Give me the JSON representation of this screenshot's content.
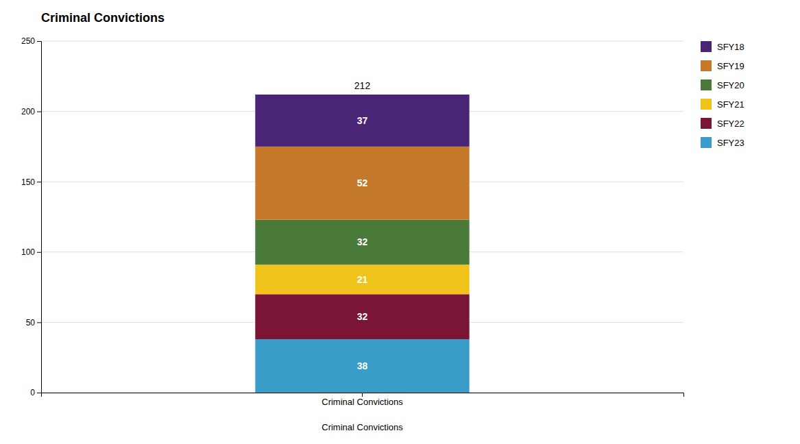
{
  "chart_data": {
    "type": "bar",
    "stacked": true,
    "title": "Criminal Convictions",
    "xlabel": "Criminal Convictions",
    "categories": [
      "Criminal Convictions"
    ],
    "series": [
      {
        "name": "SFY23",
        "color": "#3a9cc8",
        "values": [
          38
        ]
      },
      {
        "name": "SFY22",
        "color": "#7a1535",
        "values": [
          32
        ]
      },
      {
        "name": "SFY21",
        "color": "#f0c31a",
        "values": [
          21
        ]
      },
      {
        "name": "SFY20",
        "color": "#4a7a3a",
        "values": [
          32
        ]
      },
      {
        "name": "SFY19",
        "color": "#c47a2a",
        "values": [
          52
        ]
      },
      {
        "name": "SFY18",
        "color": "#4a2575",
        "values": [
          37
        ]
      }
    ],
    "annotations": [
      {
        "text": "212",
        "value": 212
      }
    ],
    "ylim": [
      0,
      250
    ],
    "yticks": [
      0,
      50,
      100,
      150,
      200,
      250
    ],
    "grid": true,
    "data_labels": true,
    "legend": "right"
  }
}
